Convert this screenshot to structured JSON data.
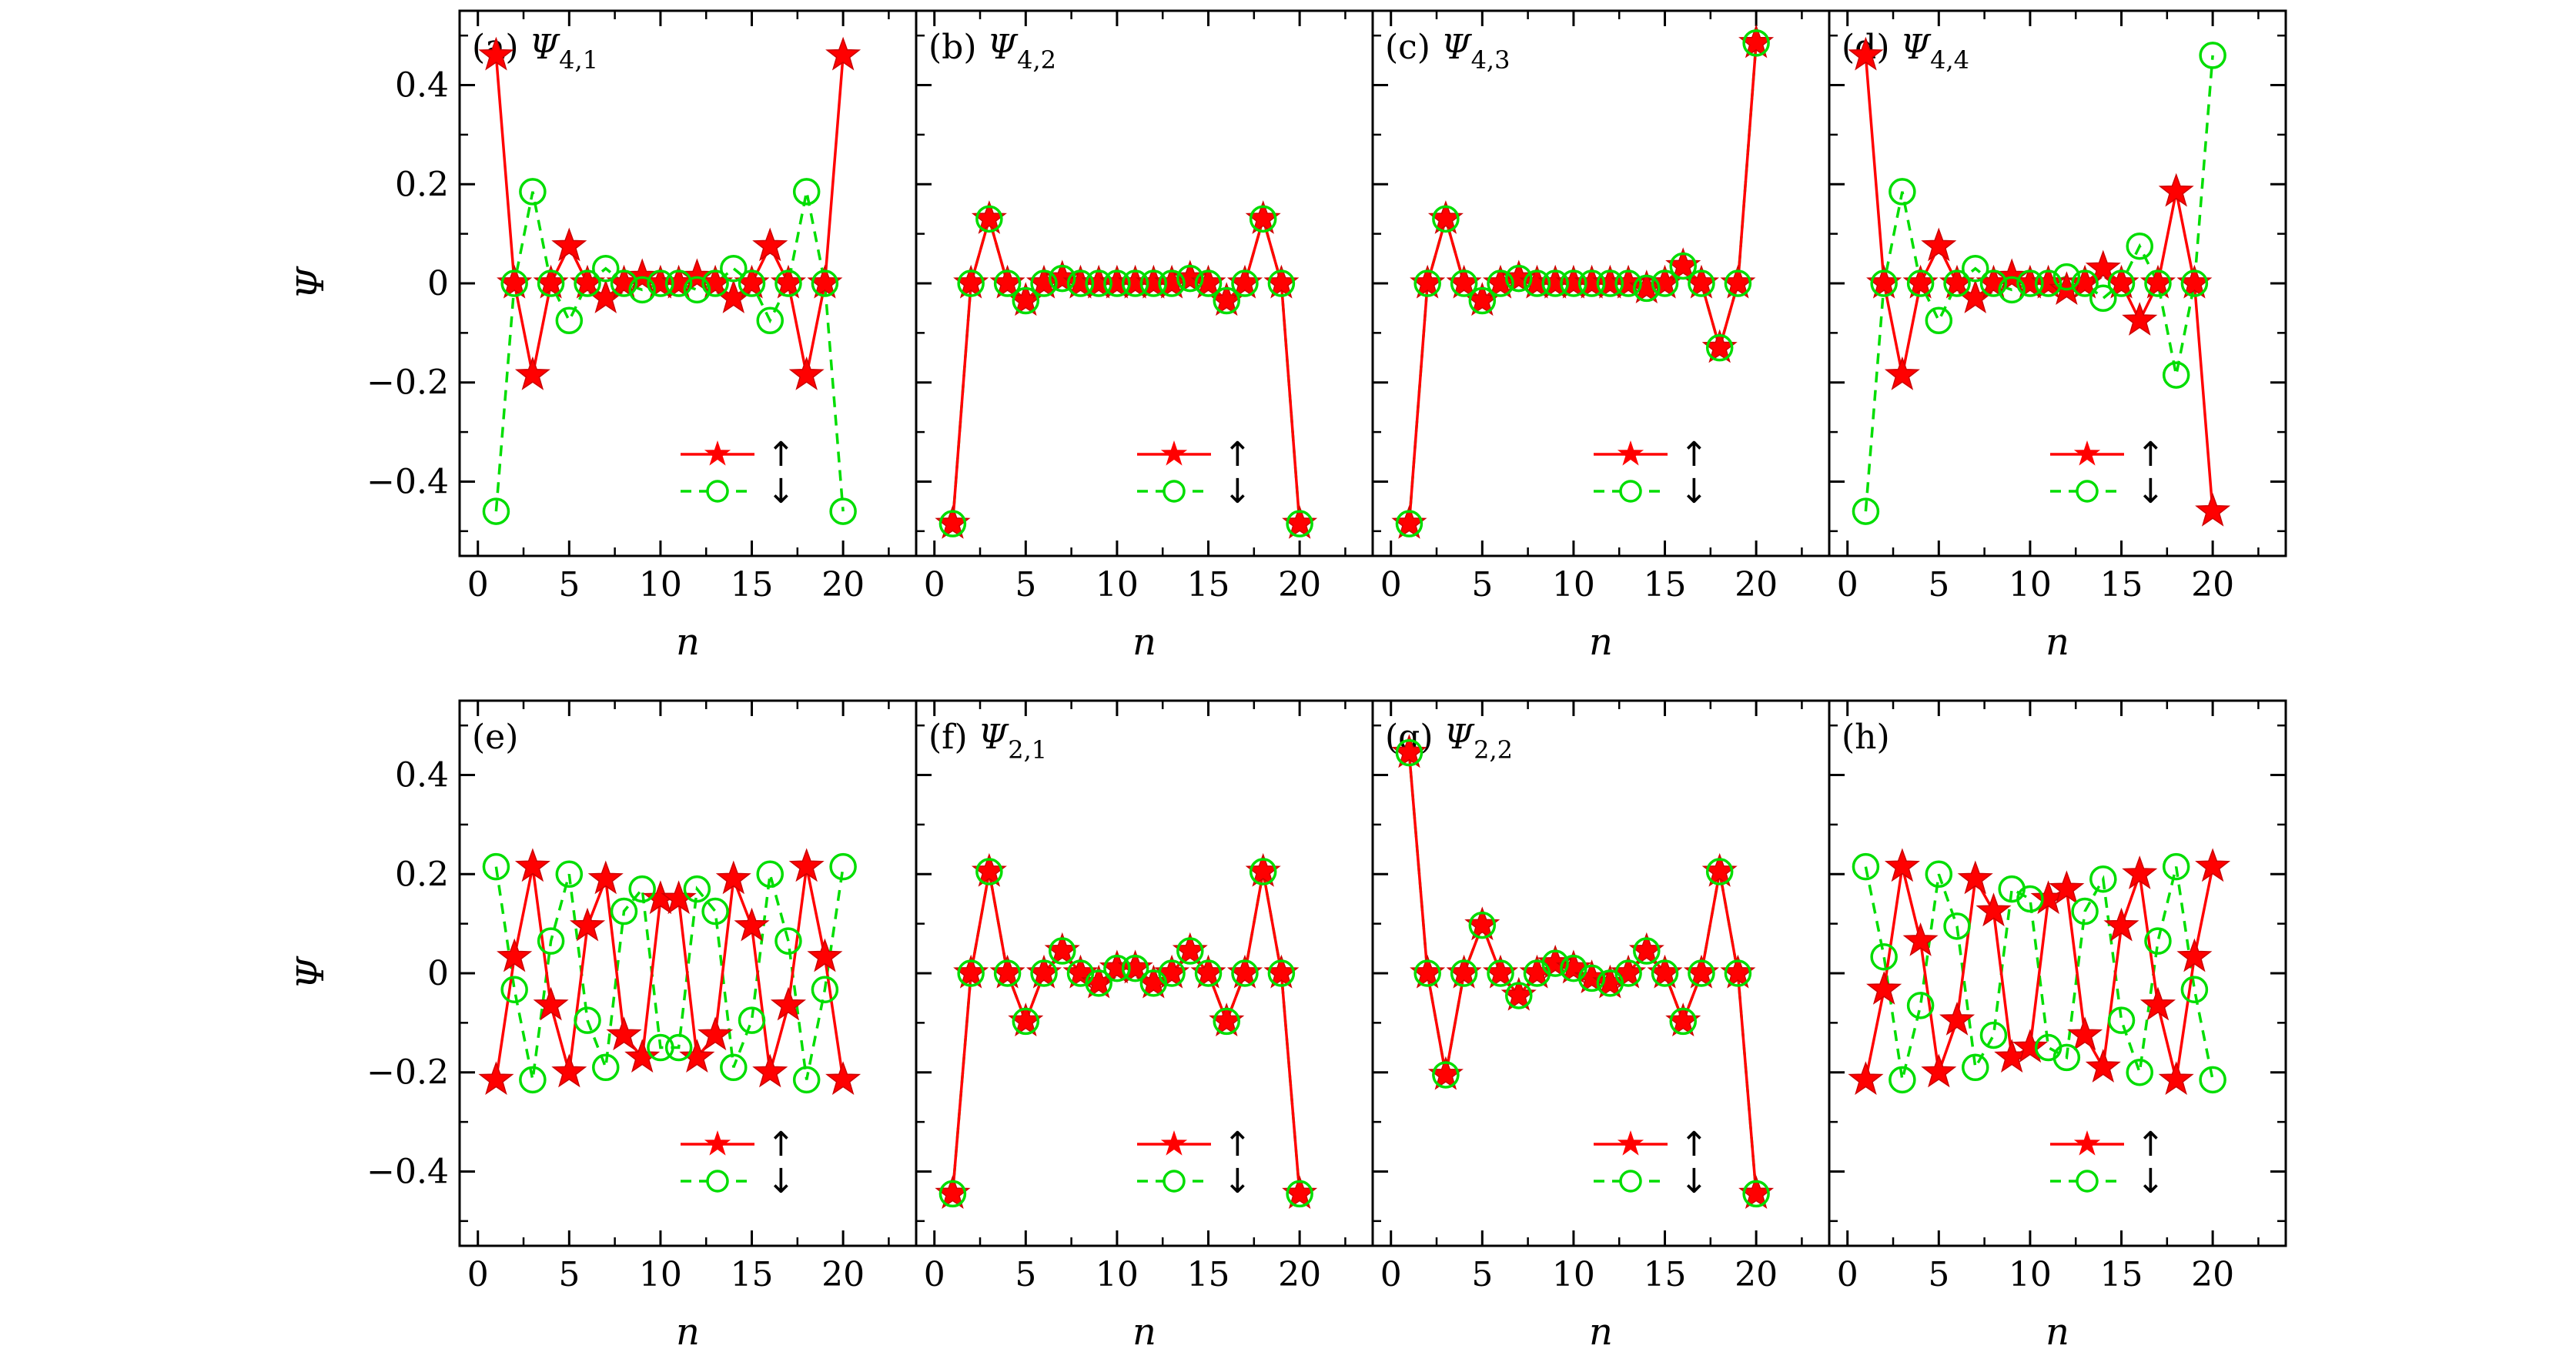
{
  "chart_data": [
    {
      "type": "line",
      "label": "(a) ",
      "psi": "Ψ",
      "sub": "4,1",
      "xlabel": "n",
      "ylabel": "Ψ",
      "xlim": [
        -1,
        24
      ],
      "ylim": [
        -0.55,
        0.55
      ],
      "xticks": [
        0,
        5,
        10,
        15,
        20
      ],
      "yticks": [
        0.4,
        0.2,
        0,
        -0.2,
        -0.4
      ],
      "x": [
        1,
        2,
        3,
        4,
        5,
        6,
        7,
        8,
        9,
        10,
        11,
        12,
        13,
        14,
        15,
        16,
        17,
        18,
        19,
        20
      ],
      "series": [
        {
          "name": "↑",
          "color": "#ff0000",
          "marker": "star",
          "dash": "solid",
          "values": [
            0.46,
            0,
            -0.185,
            0,
            0.075,
            0,
            -0.03,
            0,
            0.013,
            0,
            0,
            0.013,
            0,
            -0.03,
            0,
            0.075,
            0,
            -0.185,
            0,
            0.46
          ]
        },
        {
          "name": "↓",
          "color": "#00dd00",
          "marker": "circle",
          "dash": "dashed",
          "values": [
            -0.46,
            0,
            0.185,
            0,
            -0.075,
            0,
            0.03,
            0,
            -0.013,
            0,
            0,
            -0.013,
            0,
            0.03,
            0,
            -0.075,
            0,
            0.185,
            0,
            -0.46
          ]
        }
      ]
    },
    {
      "type": "line",
      "label": "(b) ",
      "psi": "Ψ",
      "sub": "4,2",
      "xlabel": "n",
      "ylabel": "",
      "xlim": [
        -1,
        24
      ],
      "ylim": [
        -0.55,
        0.55
      ],
      "xticks": [
        0,
        5,
        10,
        15,
        20
      ],
      "yticks": [],
      "x": [
        1,
        2,
        3,
        4,
        5,
        6,
        7,
        8,
        9,
        10,
        11,
        12,
        13,
        14,
        15,
        16,
        17,
        18,
        19,
        20
      ],
      "series": [
        {
          "name": "↑",
          "color": "#ff0000",
          "marker": "star",
          "dash": "solid",
          "values": [
            -0.485,
            0,
            0.13,
            0,
            -0.035,
            0,
            0.01,
            0,
            0,
            0,
            0,
            0,
            0,
            0.01,
            0,
            -0.035,
            0,
            0.13,
            0,
            -0.485
          ]
        },
        {
          "name": "↓",
          "color": "#00dd00",
          "marker": "circle",
          "dash": "dashed",
          "values": [
            -0.485,
            0,
            0.13,
            0,
            -0.035,
            0,
            0.01,
            0,
            0,
            0,
            0,
            0,
            0,
            0.01,
            0,
            -0.035,
            0,
            0.13,
            0,
            -0.485
          ]
        }
      ]
    },
    {
      "type": "line",
      "label": "(c) ",
      "psi": "Ψ",
      "sub": "4,3",
      "xlabel": "n",
      "ylabel": "",
      "xlim": [
        -1,
        24
      ],
      "ylim": [
        -0.55,
        0.55
      ],
      "xticks": [
        0,
        5,
        10,
        15,
        20
      ],
      "yticks": [],
      "x": [
        1,
        2,
        3,
        4,
        5,
        6,
        7,
        8,
        9,
        10,
        11,
        12,
        13,
        14,
        15,
        16,
        17,
        18,
        19,
        20
      ],
      "series": [
        {
          "name": "↑",
          "color": "#ff0000",
          "marker": "star",
          "dash": "solid",
          "values": [
            -0.485,
            0,
            0.13,
            0,
            -0.035,
            0,
            0.01,
            0,
            0,
            0,
            0,
            0,
            0,
            -0.01,
            0,
            0.035,
            0,
            -0.13,
            0,
            0.485
          ]
        },
        {
          "name": "↓",
          "color": "#00dd00",
          "marker": "circle",
          "dash": "dashed",
          "values": [
            -0.485,
            0,
            0.13,
            0,
            -0.035,
            0,
            0.01,
            0,
            0,
            0,
            0,
            0,
            0,
            -0.01,
            0,
            0.035,
            0,
            -0.13,
            0,
            0.485
          ]
        }
      ]
    },
    {
      "type": "line",
      "label": "(d) ",
      "psi": "Ψ",
      "sub": "4,4",
      "xlabel": "n",
      "ylabel": "",
      "xlim": [
        -1,
        24
      ],
      "ylim": [
        -0.55,
        0.55
      ],
      "xticks": [
        0,
        5,
        10,
        15,
        20
      ],
      "yticks": [],
      "x": [
        1,
        2,
        3,
        4,
        5,
        6,
        7,
        8,
        9,
        10,
        11,
        12,
        13,
        14,
        15,
        16,
        17,
        18,
        19,
        20
      ],
      "series": [
        {
          "name": "↑",
          "color": "#ff0000",
          "marker": "star",
          "dash": "solid",
          "values": [
            0.46,
            0,
            -0.185,
            0,
            0.075,
            0,
            -0.03,
            0,
            0.013,
            0,
            0,
            -0.013,
            0,
            0.03,
            0,
            -0.075,
            0,
            0.185,
            0,
            -0.46
          ]
        },
        {
          "name": "↓",
          "color": "#00dd00",
          "marker": "circle",
          "dash": "dashed",
          "values": [
            -0.46,
            0,
            0.185,
            0,
            -0.075,
            0,
            0.03,
            0,
            -0.013,
            0,
            0,
            0.013,
            0,
            -0.03,
            0,
            0.075,
            0,
            -0.185,
            0,
            0.46
          ]
        }
      ]
    },
    {
      "type": "line",
      "label": "(e)",
      "psi": "",
      "sub": "",
      "xlabel": "n",
      "ylabel": "Ψ",
      "xlim": [
        -1,
        24
      ],
      "ylim": [
        -0.55,
        0.55
      ],
      "xticks": [
        0,
        5,
        10,
        15,
        20
      ],
      "yticks": [
        0.4,
        0.2,
        0,
        -0.2,
        -0.4
      ],
      "x": [
        1,
        2,
        3,
        4,
        5,
        6,
        7,
        8,
        9,
        10,
        11,
        12,
        13,
        14,
        15,
        16,
        17,
        18,
        19,
        20
      ],
      "series": [
        {
          "name": "↑",
          "color": "#ff0000",
          "marker": "star",
          "dash": "solid",
          "values": [
            -0.215,
            0.033,
            0.215,
            -0.065,
            -0.2,
            0.095,
            0.19,
            -0.125,
            -0.17,
            0.15,
            0.15,
            -0.17,
            -0.125,
            0.19,
            0.095,
            -0.2,
            -0.065,
            0.215,
            0.033,
            -0.215
          ]
        },
        {
          "name": "↓",
          "color": "#00dd00",
          "marker": "circle",
          "dash": "dashed",
          "values": [
            0.215,
            -0.033,
            -0.215,
            0.065,
            0.2,
            -0.095,
            -0.19,
            0.125,
            0.17,
            -0.15,
            -0.15,
            0.17,
            0.125,
            -0.19,
            -0.095,
            0.2,
            0.065,
            -0.215,
            -0.033,
            0.215
          ]
        }
      ]
    },
    {
      "type": "line",
      "label": "(f) ",
      "psi": "Ψ",
      "sub": "2,1",
      "xlabel": "n",
      "ylabel": "",
      "xlim": [
        -1,
        24
      ],
      "ylim": [
        -0.55,
        0.55
      ],
      "xticks": [
        0,
        5,
        10,
        15,
        20
      ],
      "yticks": [],
      "x": [
        1,
        2,
        3,
        4,
        5,
        6,
        7,
        8,
        9,
        10,
        11,
        12,
        13,
        14,
        15,
        16,
        17,
        18,
        19,
        20
      ],
      "series": [
        {
          "name": "↑",
          "color": "#ff0000",
          "marker": "star",
          "dash": "solid",
          "values": [
            -0.445,
            0,
            0.205,
            0,
            -0.097,
            0,
            0.045,
            0,
            -0.02,
            0.01,
            0.01,
            -0.02,
            0,
            0.045,
            0,
            -0.097,
            0,
            0.205,
            0,
            -0.445
          ]
        },
        {
          "name": "↓",
          "color": "#00dd00",
          "marker": "circle",
          "dash": "dashed",
          "values": [
            -0.445,
            0,
            0.205,
            0,
            -0.097,
            0,
            0.045,
            0,
            -0.02,
            0.01,
            0.01,
            -0.02,
            0,
            0.045,
            0,
            -0.097,
            0,
            0.205,
            0,
            -0.445
          ]
        }
      ]
    },
    {
      "type": "line",
      "label": "(g) ",
      "psi": "Ψ",
      "sub": "2,2",
      "xlabel": "n",
      "ylabel": "",
      "xlim": [
        -1,
        24
      ],
      "ylim": [
        -0.55,
        0.55
      ],
      "xticks": [
        0,
        5,
        10,
        15,
        20
      ],
      "yticks": [],
      "x": [
        1,
        2,
        3,
        4,
        5,
        6,
        7,
        8,
        9,
        10,
        11,
        12,
        13,
        14,
        15,
        16,
        17,
        18,
        19,
        20
      ],
      "series": [
        {
          "name": "↑",
          "color": "#ff0000",
          "marker": "star",
          "dash": "solid",
          "values": [
            0.445,
            0,
            -0.205,
            0,
            0.097,
            0,
            -0.045,
            0,
            0.02,
            0.01,
            -0.01,
            -0.02,
            0,
            0.045,
            0,
            -0.097,
            0,
            0.205,
            0,
            -0.445
          ]
        },
        {
          "name": "↓",
          "color": "#00dd00",
          "marker": "circle",
          "dash": "dashed",
          "values": [
            0.445,
            0,
            -0.205,
            0,
            0.097,
            0,
            -0.045,
            0,
            0.02,
            0.01,
            -0.01,
            -0.02,
            0,
            0.045,
            0,
            -0.097,
            0,
            0.205,
            0,
            -0.445
          ]
        }
      ]
    },
    {
      "type": "line",
      "label": "(h)",
      "psi": "",
      "sub": "",
      "xlabel": "n",
      "ylabel": "",
      "xlim": [
        -1,
        24
      ],
      "ylim": [
        -0.55,
        0.55
      ],
      "xticks": [
        0,
        5,
        10,
        15,
        20
      ],
      "yticks": [],
      "x": [
        1,
        2,
        3,
        4,
        5,
        6,
        7,
        8,
        9,
        10,
        11,
        12,
        13,
        14,
        15,
        16,
        17,
        18,
        19,
        20
      ],
      "series": [
        {
          "name": "↑",
          "color": "#ff0000",
          "marker": "star",
          "dash": "solid",
          "values": [
            -0.215,
            -0.033,
            0.215,
            0.065,
            -0.2,
            -0.095,
            0.19,
            0.125,
            -0.17,
            -0.15,
            0.15,
            0.17,
            -0.125,
            -0.19,
            0.095,
            0.2,
            -0.065,
            -0.215,
            0.033,
            0.215
          ]
        },
        {
          "name": "↓",
          "color": "#00dd00",
          "marker": "circle",
          "dash": "dashed",
          "values": [
            0.215,
            0.033,
            -0.215,
            -0.065,
            0.2,
            0.095,
            -0.19,
            -0.125,
            0.17,
            0.15,
            -0.15,
            -0.17,
            0.125,
            0.19,
            -0.095,
            -0.2,
            0.065,
            0.215,
            -0.033,
            -0.215
          ]
        }
      ]
    }
  ]
}
